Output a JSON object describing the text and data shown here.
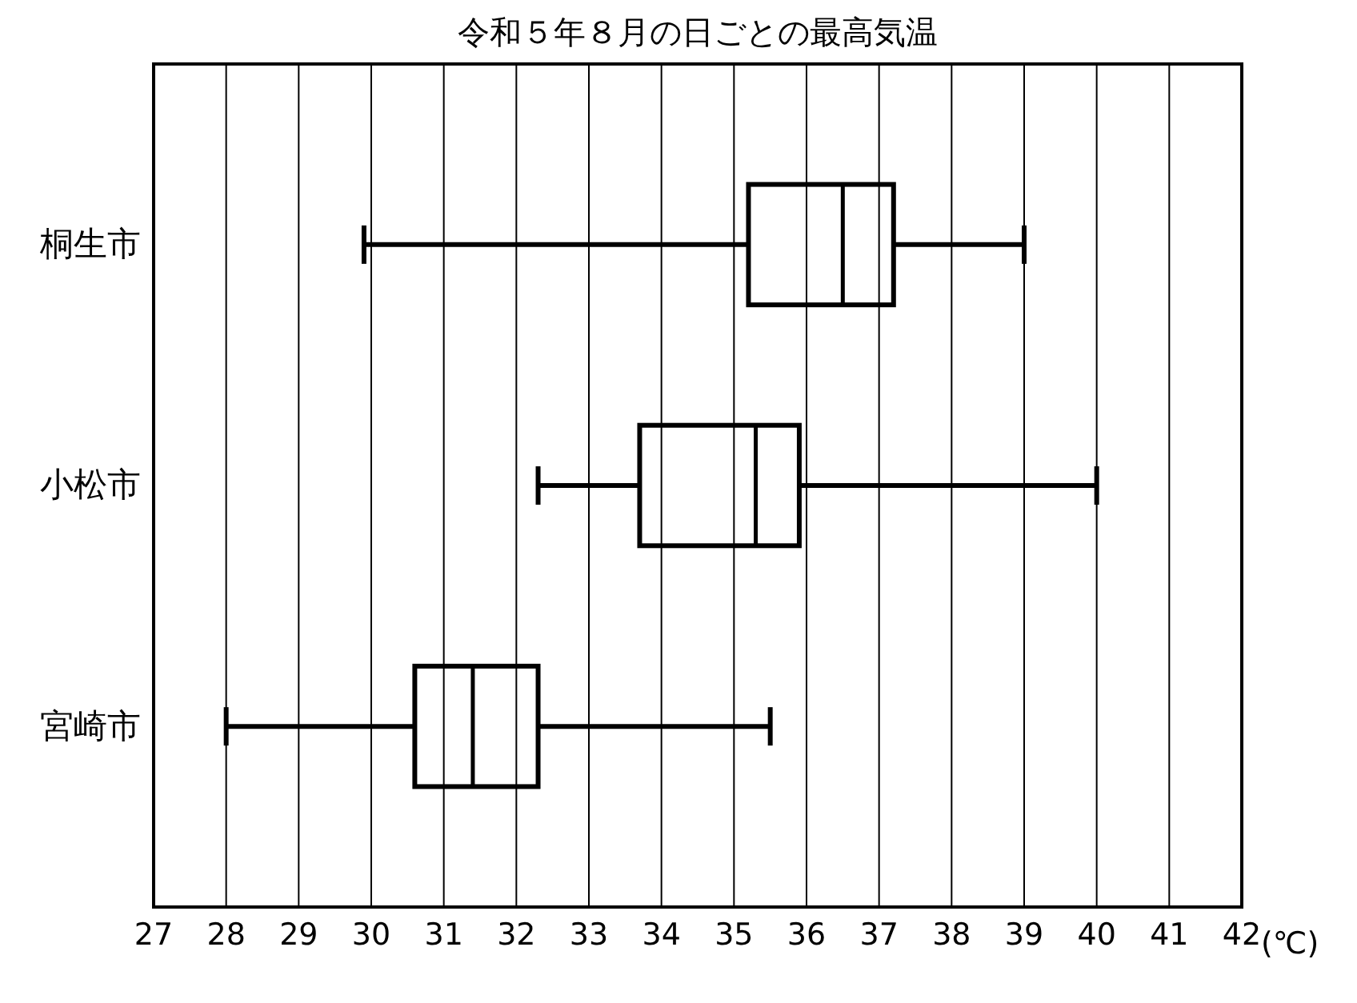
{
  "chart_data": {
    "type": "box",
    "orientation": "horizontal",
    "title": "令和５年８月の日ごとの最高気温",
    "xlabel": "(℃)",
    "categories": [
      "桐生市",
      "小松市",
      "宮崎市"
    ],
    "boxes": [
      {
        "low": 29.9,
        "q1": 35.2,
        "median": 36.5,
        "q3": 37.2,
        "high": 39.0
      },
      {
        "low": 32.3,
        "q1": 33.7,
        "median": 35.3,
        "q3": 35.9,
        "high": 40.0
      },
      {
        "low": 28.0,
        "q1": 30.6,
        "median": 31.4,
        "q3": 32.3,
        "high": 35.5
      }
    ],
    "color": "#000000",
    "xlim": [
      27,
      42
    ],
    "xticks": [
      27,
      28,
      29,
      30,
      31,
      32,
      33,
      34,
      35,
      36,
      37,
      38,
      39,
      40,
      41,
      42
    ],
    "grid": "x"
  }
}
